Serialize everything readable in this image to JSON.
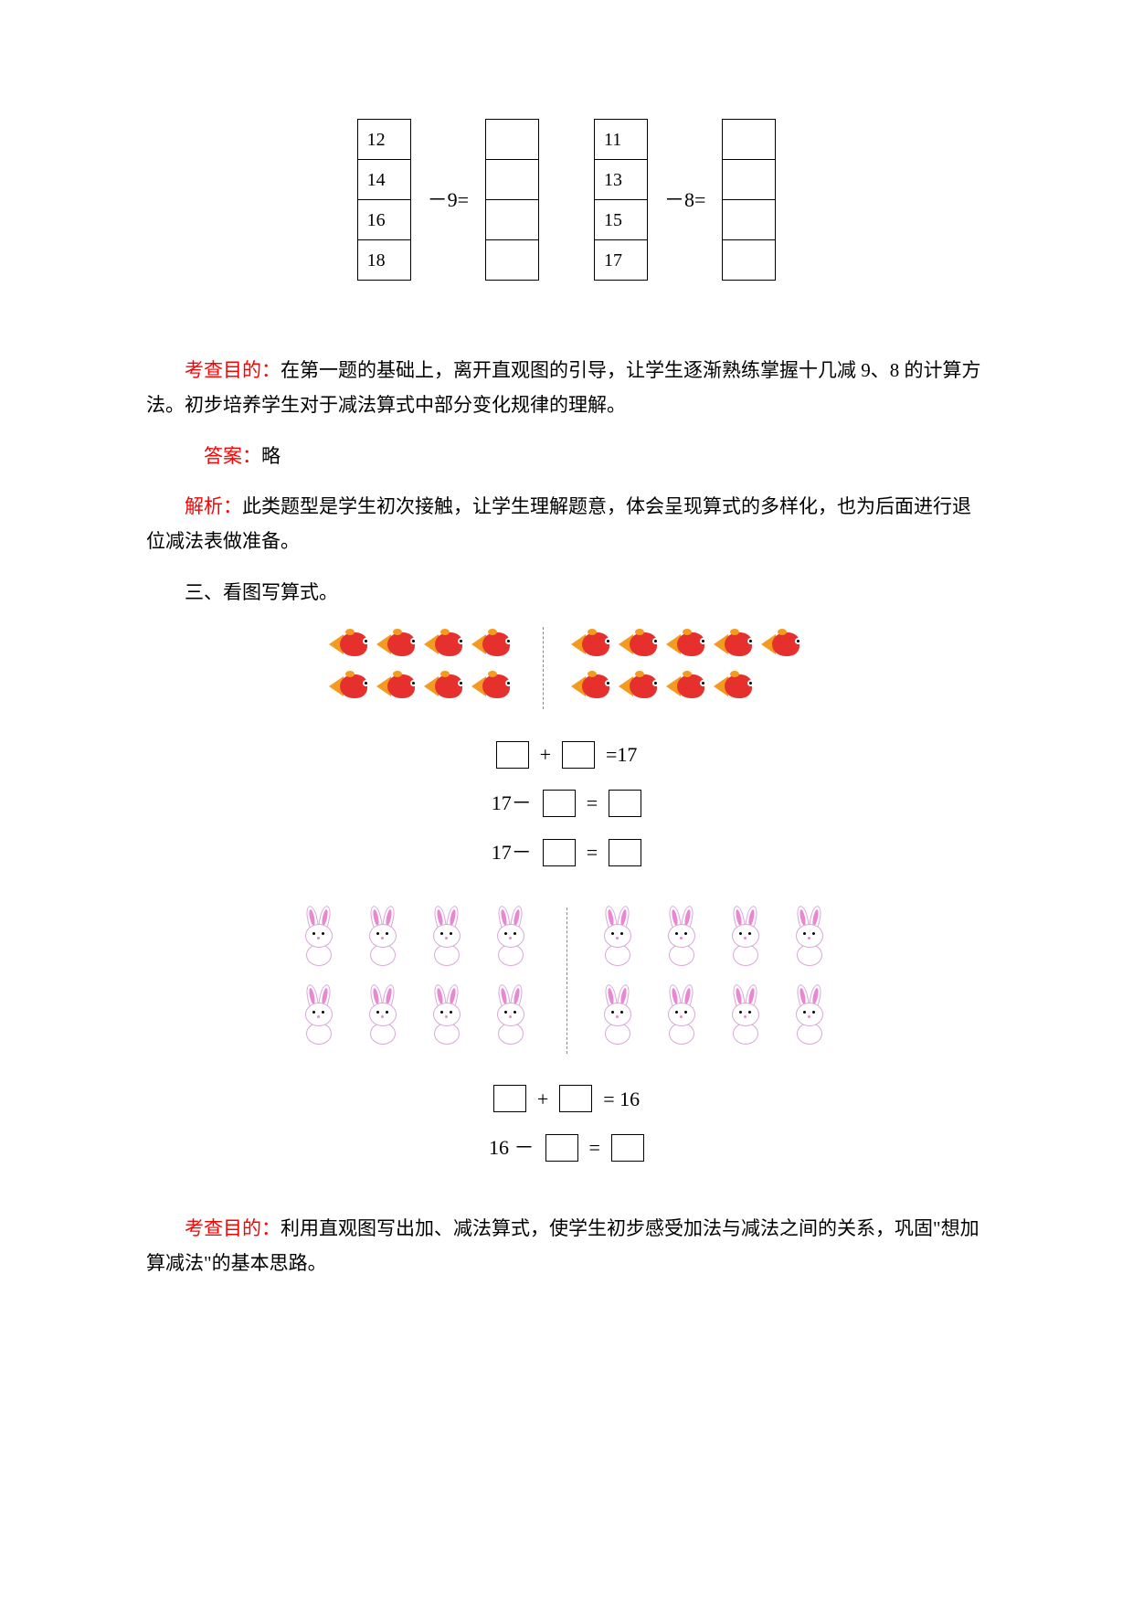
{
  "tables": {
    "left": {
      "values": [
        "12",
        "14",
        "16",
        "18"
      ],
      "op": "－9="
    },
    "right": {
      "values": [
        "11",
        "13",
        "15",
        "17"
      ],
      "op": "－8="
    }
  },
  "text": {
    "objective_label": "考查目的：",
    "objective1": "在第一题的基础上，离开直观图的引导，让学生逐渐熟练掌握十几减 9、8 的计算方法。初步培养学生对于减法算式中部分变化规律的理解。",
    "answer_label": "答案：",
    "answer1": "略",
    "analysis_label": "解析：",
    "analysis1": "此类题型是学生初次接触，让学生理解题意，体会呈现算式的多样化，也为后面进行退位减法表做准备。",
    "q3_title": "三、看图写算式。",
    "objective2": "利用直观图写出加、减法算式，使学生初步感受加法与减法之间的关系，巩固\"想加算减法\"的基本思路。"
  },
  "fish": {
    "eq1_suffix": "=17",
    "eq2_prefix": "17－",
    "eq3_prefix": "17－"
  },
  "bunny": {
    "eq1_suffix": "= 16",
    "eq2_prefix": "16 －"
  }
}
